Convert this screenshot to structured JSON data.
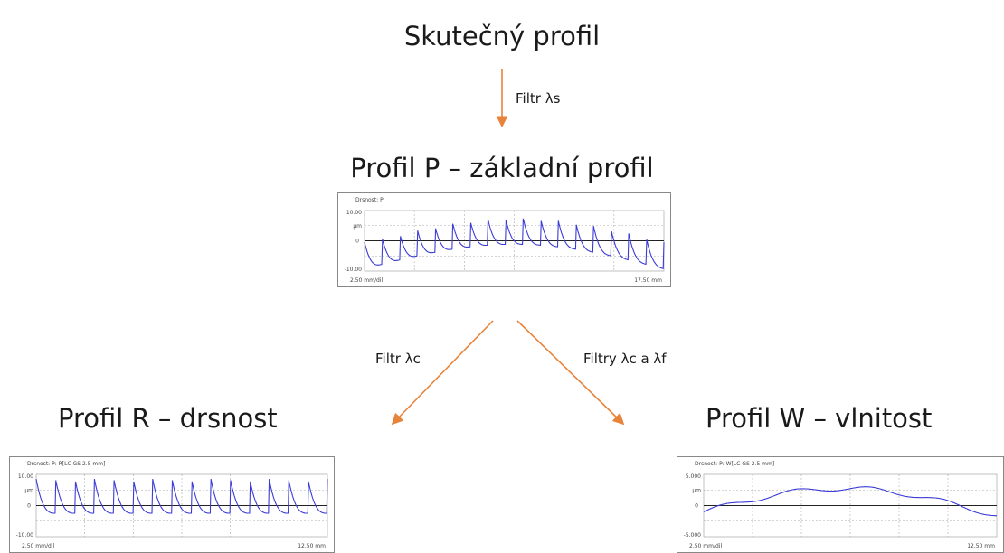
{
  "nodes": [
    {
      "label": "Skutečný profil"
    },
    {
      "label": "Profil P – základní profil"
    },
    {
      "label": "Profil R – drsnost"
    },
    {
      "label": "Profil W – vlnitost"
    }
  ],
  "edges": [
    {
      "label": "Filtr λs"
    },
    {
      "label": "Filtr λc"
    },
    {
      "label": "Filtry λc a λf"
    }
  ],
  "charts": [
    {
      "title": "Drsnost: P:",
      "ymax": "10.00",
      "unit": "µm",
      "yzero": "0",
      "ymin": "-10.00",
      "xstart": "2.50 mm/dil",
      "xend": "17.50 mm"
    },
    {
      "title": "Drsnost: P: R[LC GS 2.5 mm]",
      "ymax": "10.00",
      "unit": "µm",
      "yzero": "0",
      "ymin": "-10.00",
      "xstart": "2.50 mm/dil",
      "xend": "12.50 mm"
    },
    {
      "title": "Drsnost: P: W[LC GS 2.5 mm]",
      "ymax": "5.000",
      "unit": "µm",
      "yzero": "0",
      "ymin": "-5.000",
      "xstart": "2.50 mm/dil",
      "xend": "12.50 mm"
    }
  ]
}
